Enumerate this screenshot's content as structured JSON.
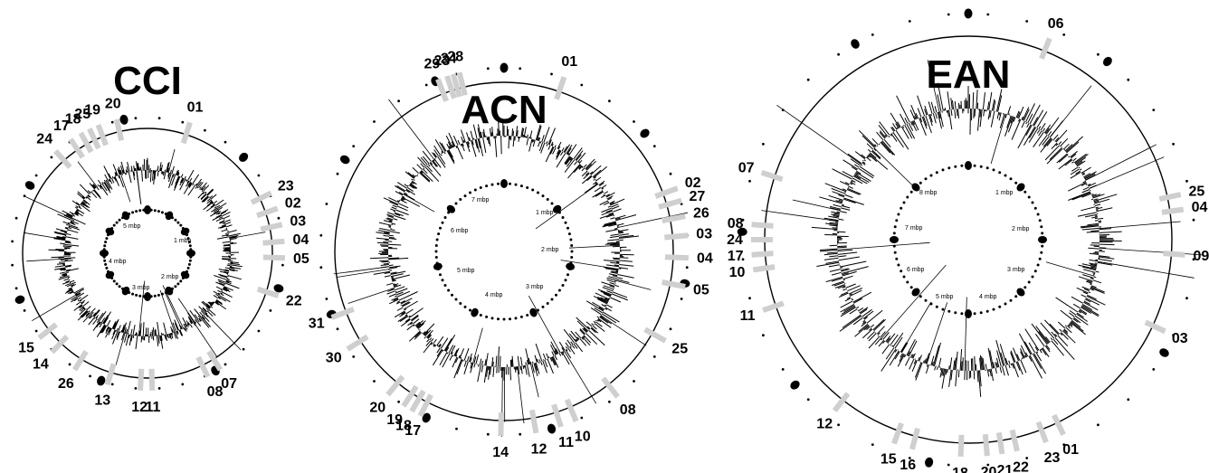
{
  "maps": [
    {
      "key": "cci",
      "title": "CCI",
      "mbp_labels": [
        "1 mbp",
        "2 mbp",
        "3 mbp",
        "4 mbp",
        "5 mbp"
      ],
      "segments": [
        {
          "label": "01",
          "angle": 18
        },
        {
          "label": "23",
          "angle": 64
        },
        {
          "label": "02",
          "angle": 71
        },
        {
          "label": "03",
          "angle": 78
        },
        {
          "label": "04",
          "angle": 85
        },
        {
          "label": "05",
          "angle": 92
        },
        {
          "label": "22",
          "angle": 108
        },
        {
          "label": "07",
          "angle": 148
        },
        {
          "label": "08",
          "angle": 154
        },
        {
          "label": "11",
          "angle": 178
        },
        {
          "label": "12",
          "angle": 183
        },
        {
          "label": "13",
          "angle": 197
        },
        {
          "label": "26",
          "angle": 212
        },
        {
          "label": "14",
          "angle": 224
        },
        {
          "label": "15",
          "angle": 232
        },
        {
          "label": "24",
          "angle": 318
        },
        {
          "label": "17",
          "angle": 326
        },
        {
          "label": "18",
          "angle": 331
        },
        {
          "label": "25",
          "angle": 335
        },
        {
          "label": "19",
          "angle": 339
        },
        {
          "label": "20",
          "angle": 347
        }
      ]
    },
    {
      "key": "acn",
      "title": "ACN",
      "mbp_labels": [
        "1 mbp",
        "2 mbp",
        "3 mbp",
        "4 mbp",
        "5 mbp",
        "6 mbp",
        "7 mbp"
      ],
      "segments": [
        {
          "label": "01",
          "angle": 19
        },
        {
          "label": "02",
          "angle": 70
        },
        {
          "label": "27",
          "angle": 74
        },
        {
          "label": "26",
          "angle": 79
        },
        {
          "label": "03",
          "angle": 85
        },
        {
          "label": "04",
          "angle": 92
        },
        {
          "label": "05",
          "angle": 101
        },
        {
          "label": "25",
          "angle": 119
        },
        {
          "label": "08",
          "angle": 142
        },
        {
          "label": "10",
          "angle": 157
        },
        {
          "label": "11",
          "angle": 162
        },
        {
          "label": "12",
          "angle": 170
        },
        {
          "label": "14",
          "angle": 181
        },
        {
          "label": "17",
          "angle": 207
        },
        {
          "label": "18",
          "angle": 210
        },
        {
          "label": "19",
          "angle": 213
        },
        {
          "label": "20",
          "angle": 219
        },
        {
          "label": "30",
          "angle": 238
        },
        {
          "label": "31",
          "angle": 249
        },
        {
          "label": "29",
          "angle": 339
        },
        {
          "label": "23",
          "angle": 342
        },
        {
          "label": "24",
          "angle": 344
        },
        {
          "label": "28",
          "angle": 346
        }
      ]
    },
    {
      "key": "ean",
      "title": "EAN",
      "mbp_labels": [
        "1 mbp",
        "2 mbp",
        "3 mbp",
        "4 mbp",
        "5 mbp",
        "6 mbp",
        "7 mbp",
        "8 mbp"
      ],
      "segments": [
        {
          "label": "06",
          "angle": 22
        },
        {
          "label": "25",
          "angle": 78
        },
        {
          "label": "04",
          "angle": 82
        },
        {
          "label": "09",
          "angle": 94
        },
        {
          "label": "03",
          "angle": 115
        },
        {
          "label": "01",
          "angle": 154
        },
        {
          "label": "23",
          "angle": 159
        },
        {
          "label": "22",
          "angle": 167
        },
        {
          "label": "21",
          "angle": 171
        },
        {
          "label": "20",
          "angle": 175
        },
        {
          "label": "18",
          "angle": 182
        },
        {
          "label": "16",
          "angle": 195
        },
        {
          "label": "15",
          "angle": 200
        },
        {
          "label": "12",
          "angle": 218
        },
        {
          "label": "11",
          "angle": 251
        },
        {
          "label": "10",
          "angle": 262
        },
        {
          "label": "17",
          "angle": 266
        },
        {
          "label": "24",
          "angle": 270
        },
        {
          "label": "08",
          "angle": 274
        },
        {
          "label": "07",
          "angle": 288
        }
      ]
    }
  ]
}
